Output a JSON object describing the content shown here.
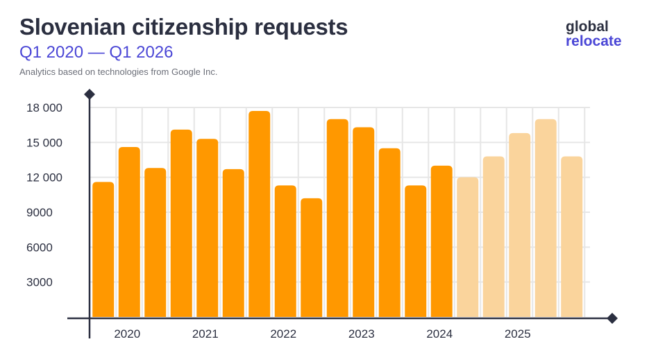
{
  "header": {
    "title": "Slovenian citizenship requests",
    "subtitle": "Q1 2020 — Q1 2026",
    "source": "Analytics based on technologies from Google Inc."
  },
  "logo": {
    "line1": "global",
    "line2": "relocate"
  },
  "colors": {
    "actual": "#ff9800",
    "forecast": "#fad49c",
    "axis": "#2b2f40",
    "grid": "#e6e6e6",
    "title": "#2b2f40",
    "accent": "#4a46d6"
  },
  "chart_data": {
    "type": "bar",
    "title": "Slovenian citizenship requests",
    "subtitle": "Q1 2020 — Q1 2026",
    "ylim": [
      0,
      18000
    ],
    "y_ticks": [
      3000,
      6000,
      9000,
      12000,
      15000,
      18000
    ],
    "y_tick_labels": [
      "3000",
      "6000",
      "9000",
      "12 000",
      "15 000",
      "18 000"
    ],
    "x_tick_labels": [
      "2020",
      "2021",
      "2022",
      "2023",
      "2024",
      "2025"
    ],
    "x_tick_positions": [
      1.5,
      4.5,
      7.5,
      10.5,
      13.5,
      16.5
    ],
    "grid": true,
    "values": [
      11600,
      14600,
      12800,
      16100,
      15300,
      12700,
      17700,
      11300,
      10200,
      17000,
      16300,
      14500,
      11300,
      13000,
      12000,
      13800,
      15800,
      17000,
      13800
    ],
    "forecast_from_index": 14
  }
}
